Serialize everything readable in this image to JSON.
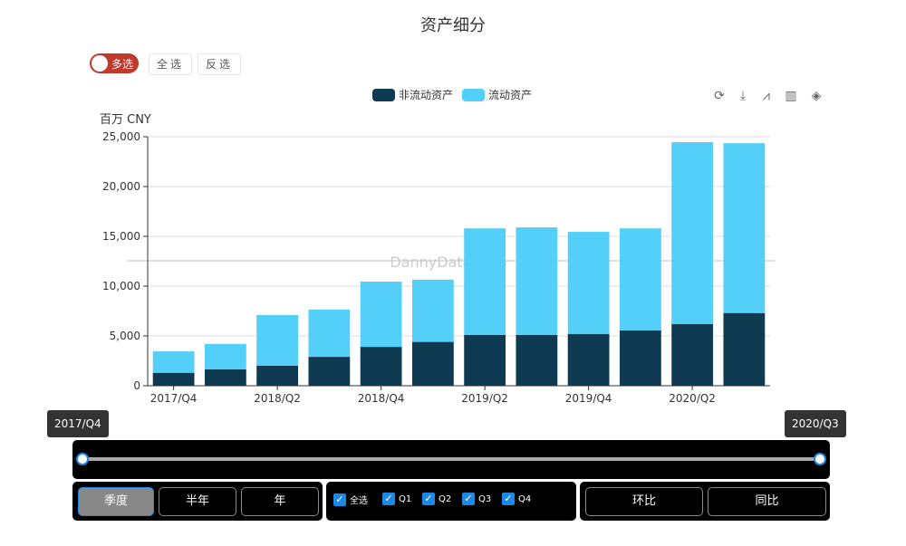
{
  "title": "资产细分",
  "controls": {
    "toggle": "多选",
    "select_all": "全选",
    "invert": "反选"
  },
  "toolbox": [
    "refresh-icon",
    "download-icon",
    "line-chart-icon",
    "bar-chart-icon",
    "stack-icon"
  ],
  "watermark": "DannyData.com",
  "colors": {
    "noncurrent": "#0e3a52",
    "current": "#54cff7"
  },
  "chart_data": {
    "type": "bar",
    "stacked": true,
    "title": "资产细分",
    "ylabel": "百万 CNY",
    "ylim": [
      0,
      25000
    ],
    "yticks": [
      "0",
      "5,000",
      "10,000",
      "15,000",
      "20,000",
      "25,000"
    ],
    "categories": [
      "2017/Q4",
      "2018/Q1",
      "2018/Q2",
      "2018/Q3",
      "2018/Q4",
      "2019/Q1",
      "2019/Q2",
      "2019/Q3",
      "2019/Q4",
      "2020/Q1",
      "2020/Q2",
      "2020/Q3"
    ],
    "xtick_labels": [
      "2017/Q4",
      "2018/Q2",
      "2018/Q4",
      "2019/Q2",
      "2019/Q4",
      "2020/Q2"
    ],
    "series": [
      {
        "name": "非流动资产",
        "values": [
          1300,
          1650,
          2000,
          2900,
          3900,
          4400,
          5100,
          5100,
          5200,
          5550,
          6200,
          7300
        ]
      },
      {
        "name": "流动资产",
        "values": [
          2150,
          2550,
          5100,
          4750,
          6550,
          6250,
          10700,
          10800,
          10250,
          10250,
          18250,
          17050
        ]
      }
    ],
    "legend": "top-center",
    "grid": true
  },
  "slider": {
    "start": "2017/Q4",
    "end": "2020/Q3",
    "range": [
      0,
      1
    ]
  },
  "period": [
    "季度",
    "半年",
    "年"
  ],
  "quarters": [
    "全选",
    "Q1",
    "Q2",
    "Q3",
    "Q4"
  ],
  "compare": [
    "环比",
    "同比"
  ]
}
